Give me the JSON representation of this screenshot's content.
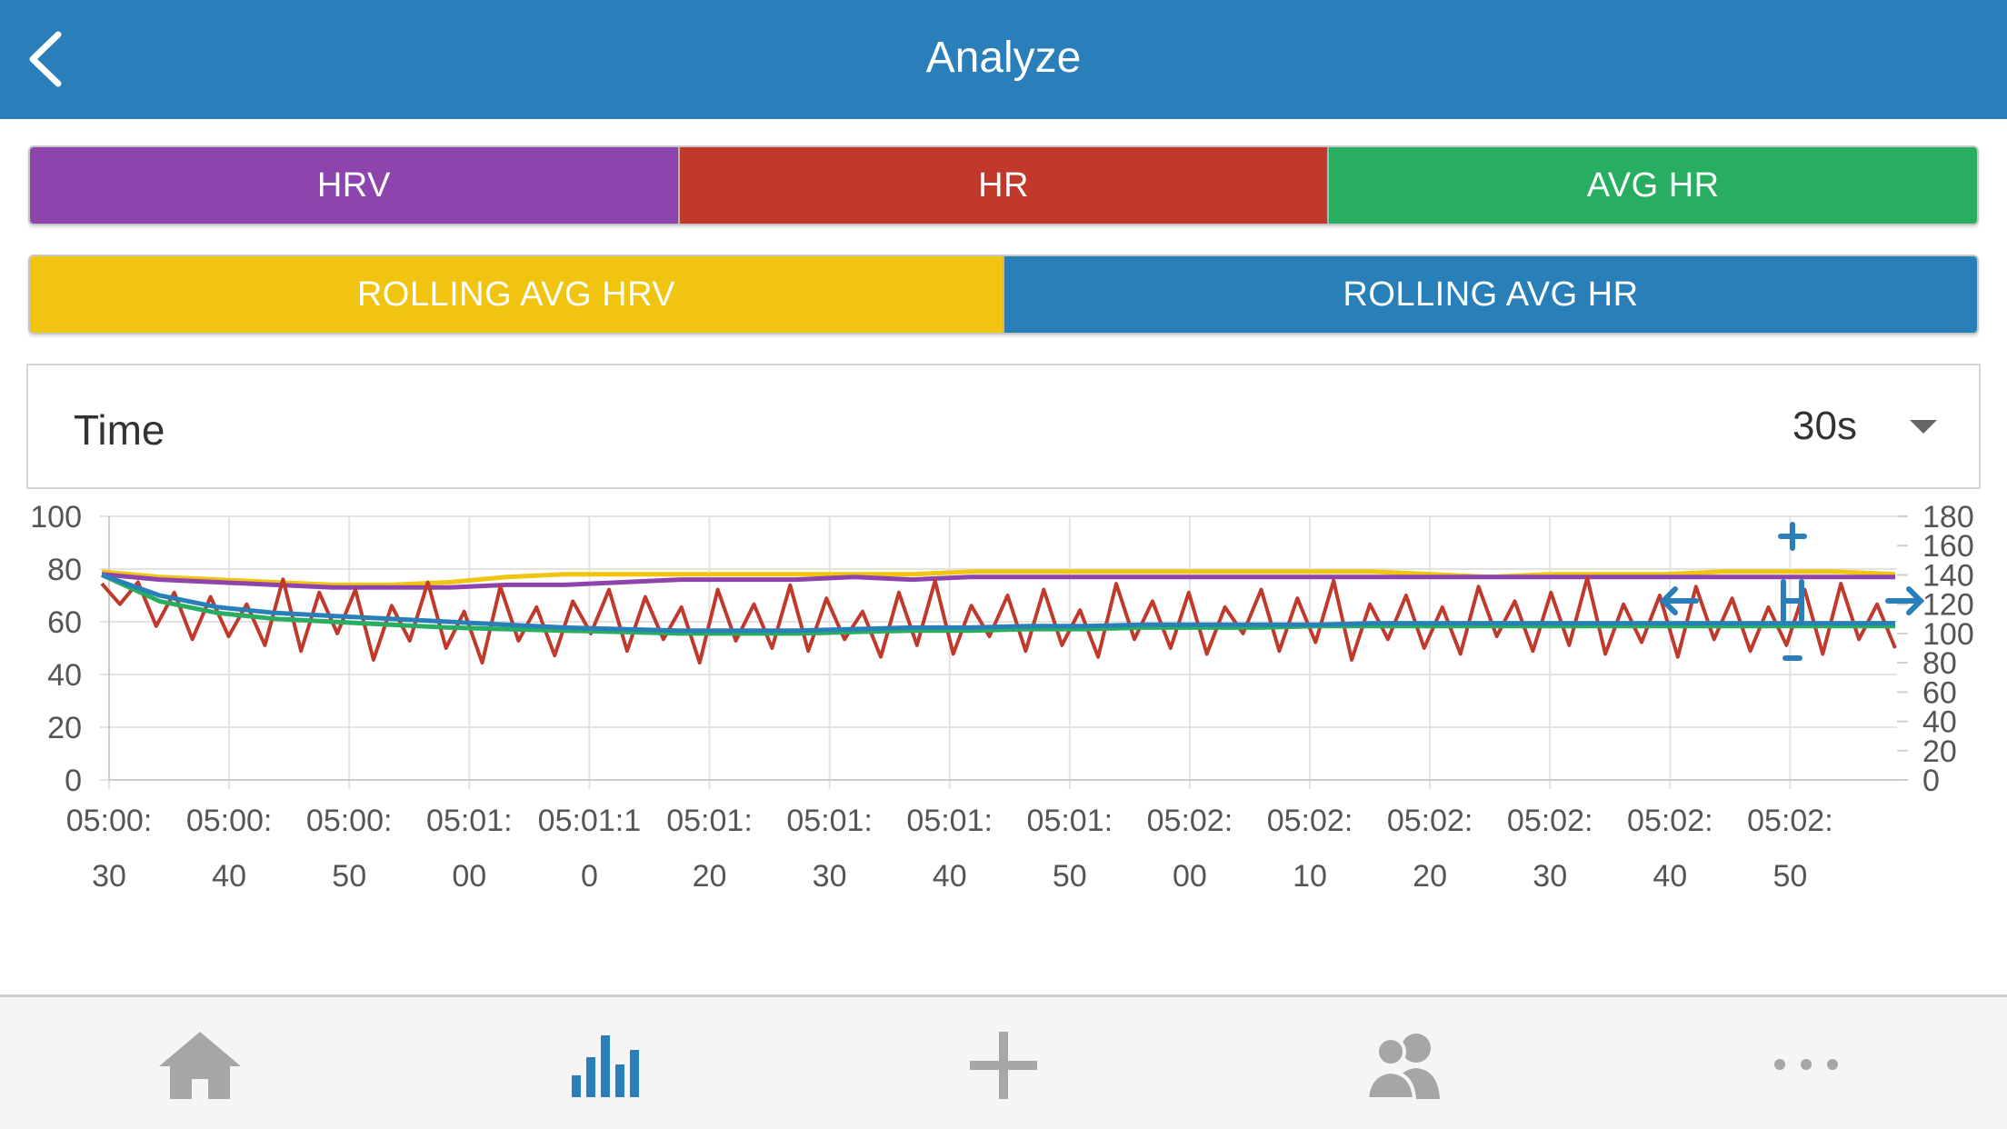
{
  "header": {
    "title": "Analyze",
    "back_icon": "chevron-left-icon"
  },
  "series_buttons": {
    "row1": [
      {
        "label": "HRV",
        "color": "#8e44ad"
      },
      {
        "label": "HR",
        "color": "#c0392b"
      },
      {
        "label": "AVG HR",
        "color": "#27ae60"
      }
    ],
    "row2": [
      {
        "label": "ROLLING AVG HRV",
        "color": "#f1c40f"
      },
      {
        "label": "ROLLING AVG HR",
        "color": "#2980b9"
      }
    ]
  },
  "time_select": {
    "label": "Time",
    "value": "30s"
  },
  "chart_data": {
    "type": "line",
    "left_axis": {
      "min": 0,
      "max": 100,
      "ticks": [
        "0",
        "20",
        "40",
        "60",
        "80",
        "100"
      ]
    },
    "right_axis": {
      "min": 0,
      "max": 180,
      "ticks": [
        "0",
        "20",
        "40",
        "60",
        "80",
        "100",
        "120",
        "140",
        "160",
        "180"
      ]
    },
    "x_ticks": [
      [
        "05:00:",
        "30"
      ],
      [
        "05:00:",
        "40"
      ],
      [
        "05:00:",
        "50"
      ],
      [
        "05:01:",
        "00"
      ],
      [
        "05:01:1",
        "0"
      ],
      [
        "05:01:",
        "20"
      ],
      [
        "05:01:",
        "30"
      ],
      [
        "05:01:",
        "40"
      ],
      [
        "05:01:",
        "50"
      ],
      [
        "05:02:",
        "00"
      ],
      [
        "05:02:",
        "10"
      ],
      [
        "05:02:",
        "20"
      ],
      [
        "05:02:",
        "30"
      ],
      [
        "05:02:",
        "40"
      ],
      [
        "05:02:",
        "50"
      ]
    ],
    "series": [
      {
        "id": "hrv",
        "color": "#8e44ad",
        "axis": "left",
        "values": [
          78,
          76,
          75,
          74,
          73,
          73,
          73,
          74,
          74,
          75,
          76,
          76,
          76,
          77,
          76,
          77,
          77,
          77,
          77,
          77,
          77,
          77,
          77,
          77,
          77,
          77,
          77,
          77,
          77,
          77,
          77,
          77
        ]
      },
      {
        "id": "rolling-avg-hrv",
        "color": "#f1c40f",
        "axis": "left",
        "values": [
          79,
          77,
          76,
          75,
          74,
          74,
          75,
          77,
          78,
          78,
          78,
          78,
          78,
          78,
          78,
          79,
          79,
          79,
          79,
          79,
          79,
          79,
          79,
          78,
          77,
          78,
          78,
          78,
          79,
          79,
          79,
          78
        ]
      },
      {
        "id": "hr",
        "color": "#c0392b",
        "axis": "right",
        "values": [
          134,
          120,
          135,
          105,
          128,
          96,
          125,
          98,
          120,
          92,
          137,
          88,
          128,
          100,
          130,
          82,
          119,
          95,
          135,
          90,
          115,
          80,
          132,
          95,
          118,
          85,
          122,
          100,
          130,
          88,
          125,
          96,
          118,
          80,
          130,
          95,
          120,
          90,
          133,
          88,
          124,
          96,
          115,
          84,
          128,
          92,
          136,
          86,
          119,
          98,
          126,
          88,
          130,
          92,
          116,
          84,
          134,
          96,
          122,
          90,
          128,
          86,
          118,
          100,
          130,
          88,
          124,
          94,
          136,
          82,
          120,
          96,
          126,
          90,
          118,
          86,
          132,
          98,
          122,
          88,
          128,
          92,
          138,
          86,
          120,
          94,
          126,
          84,
          132,
          96,
          124,
          88,
          118,
          92,
          130,
          86,
          134,
          96,
          120,
          90
        ]
      },
      {
        "id": "avg-hr",
        "color": "#27ae60",
        "axis": "right",
        "values": [
          140,
          122,
          114,
          110,
          108,
          106,
          104,
          103,
          102,
          101,
          100,
          100,
          100,
          101,
          102,
          102,
          103,
          103,
          104,
          104,
          104,
          105,
          105,
          105,
          105,
          105,
          105,
          105,
          105,
          105,
          105,
          105
        ]
      },
      {
        "id": "rolling-avg-hr",
        "color": "#2980b9",
        "axis": "right",
        "values": [
          140,
          126,
          118,
          114,
          112,
          110,
          108,
          106,
          104,
          103,
          102,
          102,
          102,
          103,
          104,
          104,
          105,
          105,
          106,
          106,
          106,
          106,
          107,
          107,
          107,
          107,
          107,
          107,
          107,
          107,
          107,
          107
        ]
      }
    ]
  },
  "tabbar": {
    "tabs": [
      {
        "icon": "home-icon",
        "active": false
      },
      {
        "icon": "analyze-bar-chart-icon",
        "active": true
      },
      {
        "icon": "add-plus-icon",
        "active": false
      },
      {
        "icon": "people-icon",
        "active": false
      },
      {
        "icon": "more-dots-icon",
        "active": false
      }
    ],
    "active_color": "#2a7fba",
    "inactive_color": "#a6a6a6"
  }
}
